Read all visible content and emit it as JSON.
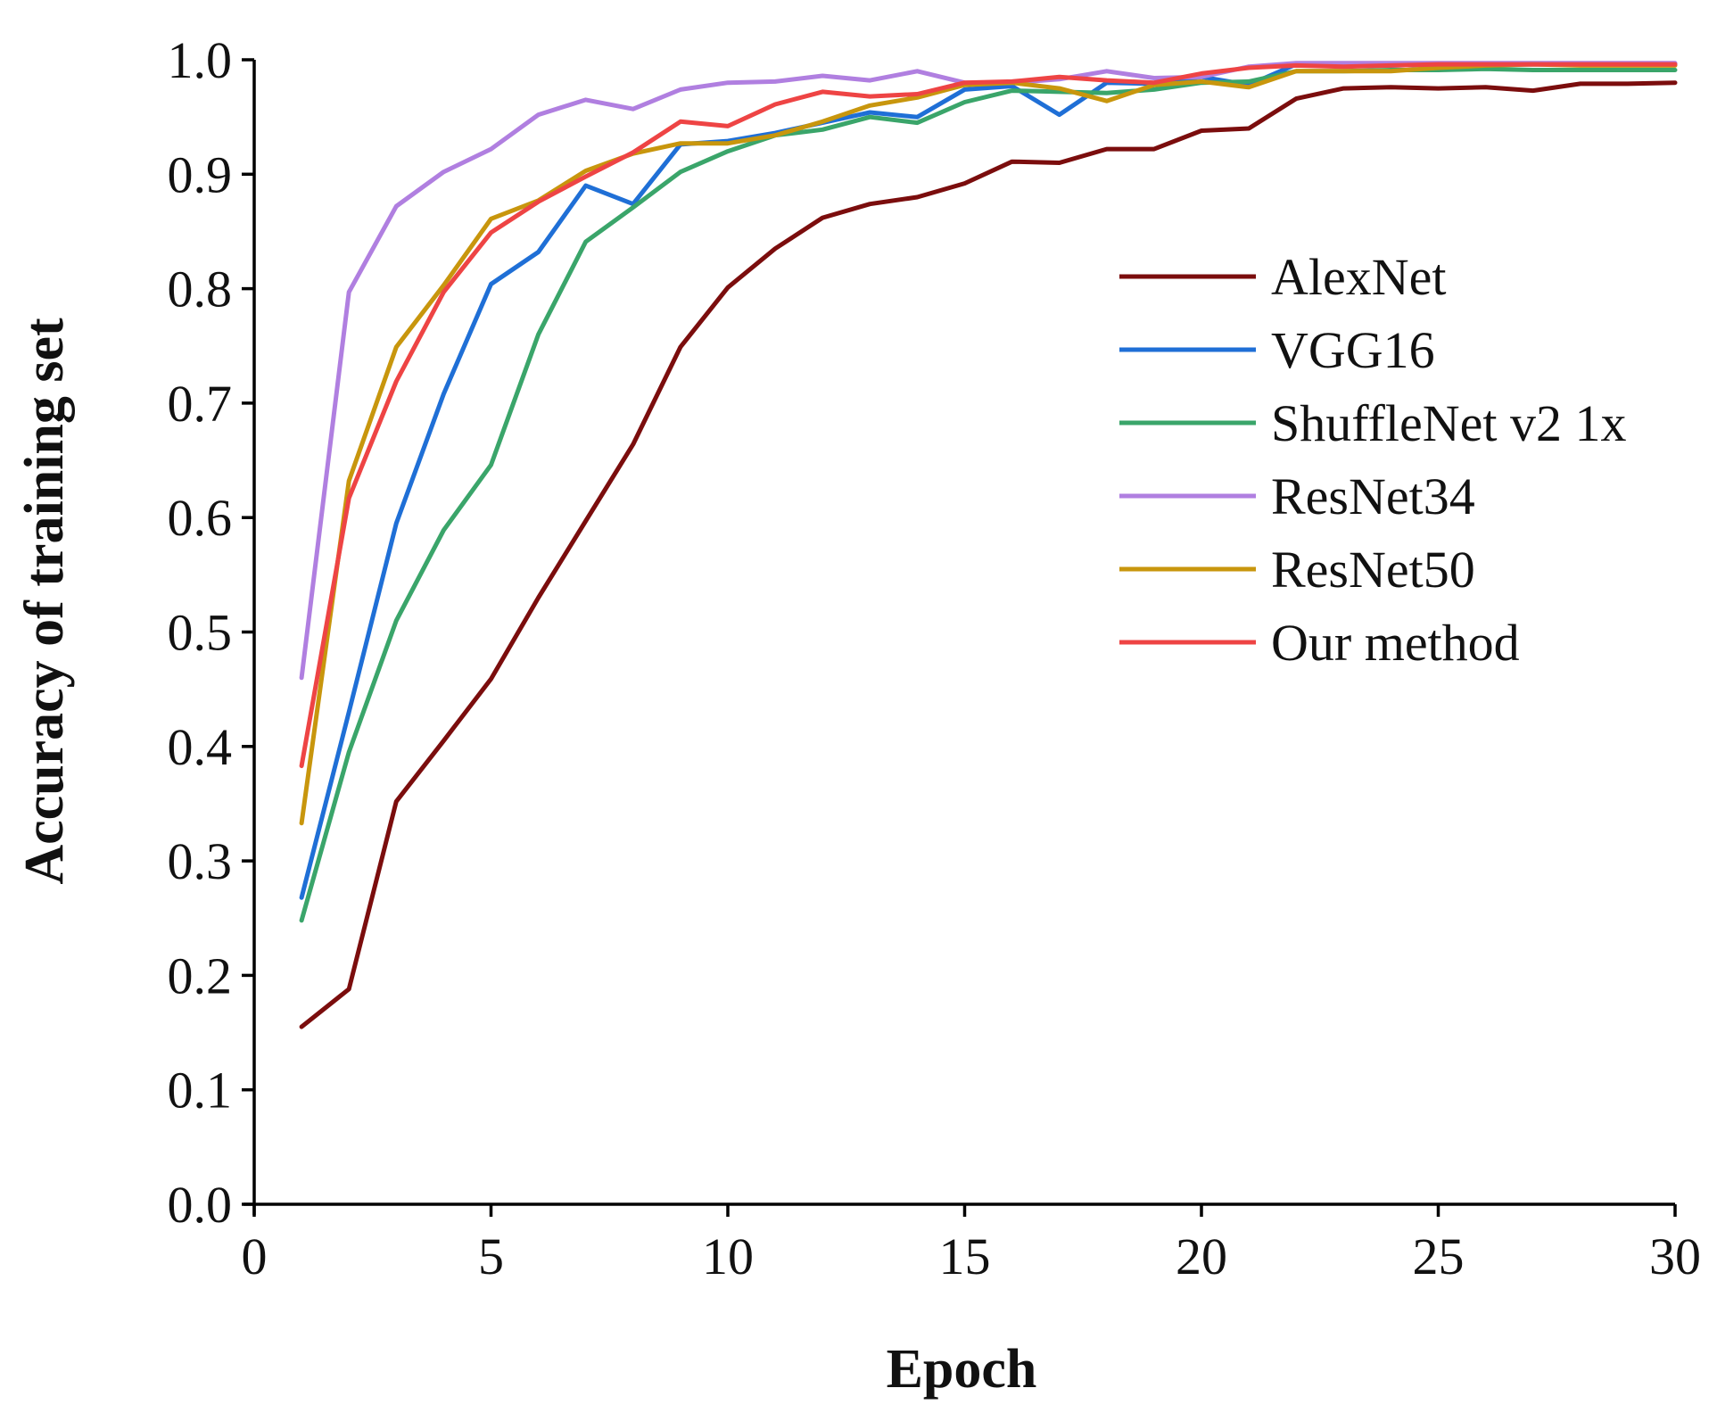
{
  "chart_data": {
    "type": "line",
    "title": "",
    "xlabel": "Epoch",
    "ylabel": "Accuracy of training set",
    "xlim": [
      0,
      30
    ],
    "ylim": [
      0.0,
      1.0
    ],
    "xticks": [
      0,
      5,
      10,
      15,
      20,
      25,
      30
    ],
    "xtick_labels": [
      "0",
      "5",
      "10",
      "15",
      "20",
      "25",
      "30"
    ],
    "yticks": [
      0.0,
      0.1,
      0.2,
      0.3,
      0.4,
      0.5,
      0.6,
      0.7,
      0.8,
      0.9,
      1.0
    ],
    "ytick_labels": [
      "0.0",
      "0.1",
      "0.2",
      "0.3",
      "0.4",
      "0.5",
      "0.6",
      "0.7",
      "0.8",
      "0.9",
      "1.0"
    ],
    "grid": false,
    "legend_position": "right",
    "x": [
      1,
      2,
      3,
      4,
      5,
      6,
      7,
      8,
      9,
      10,
      11,
      12,
      13,
      14,
      15,
      16,
      17,
      18,
      19,
      20,
      21,
      22,
      23,
      24,
      25,
      26,
      27,
      28,
      29,
      30
    ],
    "series": [
      {
        "name": "AlexNet",
        "color": "#7b0d0d",
        "values": [
          0.155,
          0.188,
          0.352,
          0.405,
          0.459,
          0.53,
          0.597,
          0.664,
          0.749,
          0.801,
          0.835,
          0.862,
          0.874,
          0.88,
          0.892,
          0.911,
          0.91,
          0.922,
          0.922,
          0.938,
          0.94,
          0.966,
          0.975,
          0.976,
          0.975,
          0.976,
          0.973,
          0.979,
          0.979,
          0.98
        ]
      },
      {
        "name": "VGG16",
        "color": "#1f6fd6",
        "values": [
          0.268,
          0.43,
          0.595,
          0.708,
          0.804,
          0.832,
          0.89,
          0.874,
          0.926,
          0.929,
          0.936,
          0.945,
          0.954,
          0.95,
          0.974,
          0.977,
          0.952,
          0.98,
          0.979,
          0.985,
          0.978,
          0.996,
          0.995,
          0.995,
          0.996,
          0.996,
          0.996,
          0.996,
          0.996,
          0.996
        ]
      },
      {
        "name": "ShuffleNet v2 1x",
        "color": "#3aa56a",
        "values": [
          0.248,
          0.395,
          0.51,
          0.589,
          0.646,
          0.76,
          0.841,
          0.871,
          0.902,
          0.92,
          0.934,
          0.939,
          0.95,
          0.945,
          0.963,
          0.973,
          0.972,
          0.971,
          0.974,
          0.98,
          0.981,
          0.99,
          0.99,
          0.991,
          0.991,
          0.992,
          0.991,
          0.991,
          0.991,
          0.991
        ]
      },
      {
        "name": "ResNet34",
        "color": "#b07fe0",
        "values": [
          0.46,
          0.797,
          0.872,
          0.902,
          0.922,
          0.952,
          0.965,
          0.957,
          0.974,
          0.98,
          0.981,
          0.986,
          0.982,
          0.99,
          0.98,
          0.98,
          0.983,
          0.99,
          0.984,
          0.985,
          0.994,
          0.997,
          0.997,
          0.997,
          0.997,
          0.997,
          0.997,
          0.997,
          0.997,
          0.997
        ]
      },
      {
        "name": "ResNet50",
        "color": "#c8960d",
        "values": [
          0.333,
          0.632,
          0.749,
          0.803,
          0.861,
          0.877,
          0.903,
          0.918,
          0.927,
          0.927,
          0.934,
          0.946,
          0.96,
          0.967,
          0.978,
          0.98,
          0.975,
          0.964,
          0.978,
          0.981,
          0.976,
          0.99,
          0.99,
          0.99,
          0.993,
          0.995,
          0.996,
          0.995,
          0.995,
          0.995
        ]
      },
      {
        "name": "Our method",
        "color": "#ee4444",
        "values": [
          0.383,
          0.617,
          0.719,
          0.797,
          0.849,
          0.876,
          0.898,
          0.919,
          0.946,
          0.942,
          0.961,
          0.972,
          0.968,
          0.97,
          0.98,
          0.981,
          0.985,
          0.982,
          0.98,
          0.988,
          0.993,
          0.995,
          0.994,
          0.995,
          0.996,
          0.996,
          0.996,
          0.996,
          0.996,
          0.996
        ]
      }
    ]
  }
}
